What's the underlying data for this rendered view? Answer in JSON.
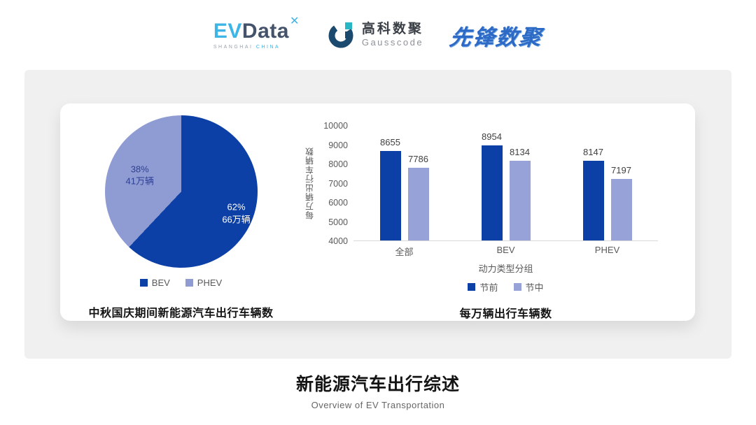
{
  "header": {
    "evdata": {
      "main_left": "EV",
      "main_right": "Data",
      "mark": "✕",
      "sub1": "SHANGHAI",
      "sub2": "CHINA"
    },
    "gausscode": {
      "cn": "高科数聚",
      "en": "Gausscode"
    },
    "pioneer": {
      "text": "先锋数聚"
    }
  },
  "chart_data": [
    {
      "type": "pie",
      "title": "中秋国庆期间新能源汽车出行车辆数",
      "legend_position": "bottom",
      "start_angle_deg": 0,
      "slices": [
        {
          "label": "BEV",
          "percent": 62,
          "percent_label": "62%",
          "value_label": "66万辆",
          "color": "#0d40a6",
          "text_color": "#ffffff"
        },
        {
          "label": "PHEV",
          "percent": 38,
          "percent_label": "38%",
          "value_label": "41万辆",
          "color": "#8f9cd4",
          "text_color": "#2f3f8f"
        }
      ]
    },
    {
      "type": "bar",
      "title": "每万辆出行车辆数",
      "categories": [
        "全部",
        "BEV",
        "PHEV"
      ],
      "series": [
        {
          "name": "节前",
          "color": "#0d40a6",
          "values": [
            8655,
            8954,
            8147
          ]
        },
        {
          "name": "节中",
          "color": "#97a3d8",
          "values": [
            7786,
            8134,
            7197
          ]
        }
      ],
      "ylabel": "每万辆出行车辆数",
      "xlabel": "动力类型分组",
      "ylim": [
        4000,
        10000
      ],
      "ytick_step": 1000,
      "grid": false,
      "legend_position": "bottom"
    }
  ],
  "footer": {
    "title": "新能源汽车出行综述",
    "subtitle": "Overview of EV Transportation"
  }
}
